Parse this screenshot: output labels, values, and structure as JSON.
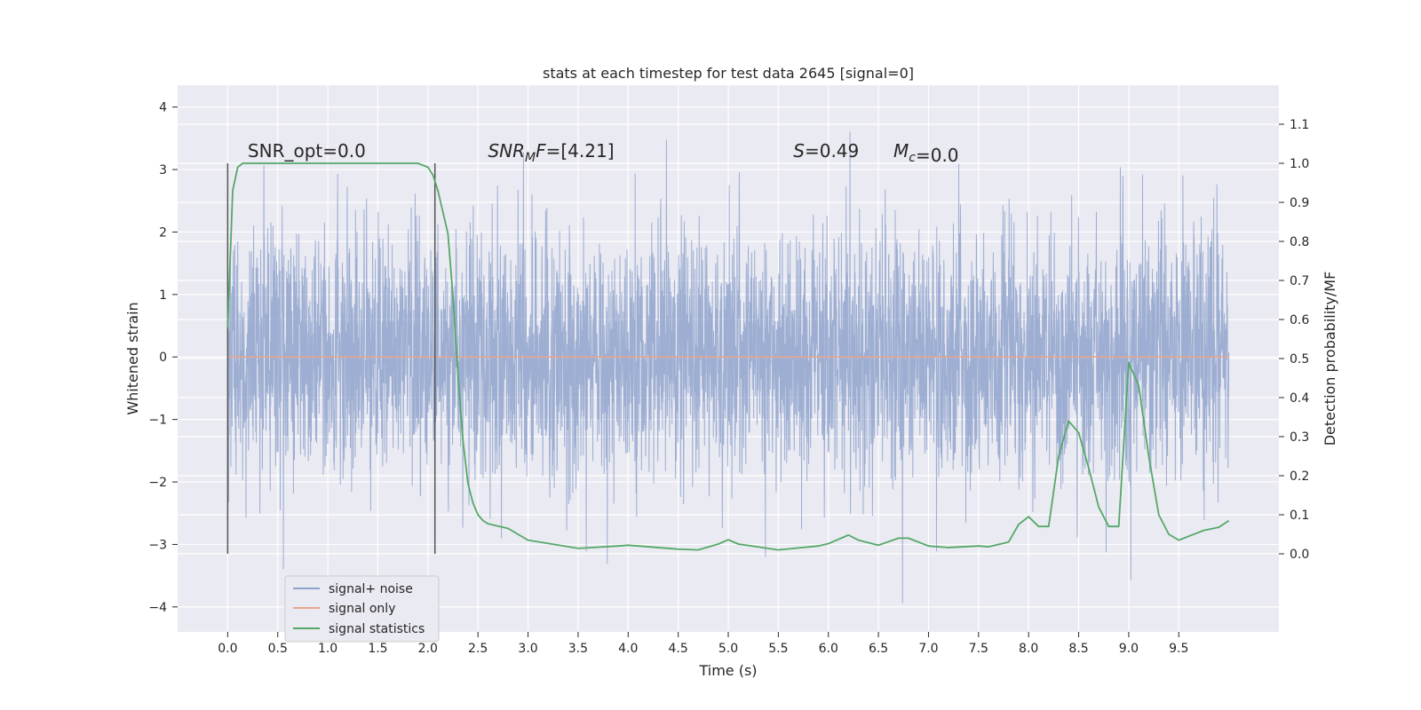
{
  "chart_data": {
    "type": "line",
    "title": "stats at each timestep for test data 2645 [signal=0]",
    "xlabel": "Time (s)",
    "ylabel": "Whitened strain",
    "ylabel_right": "Detection probability/MF",
    "xlim": [
      -0.5,
      10.5
    ],
    "ylim": [
      -4.4,
      4.35
    ],
    "ylim_right": [
      -0.2,
      1.2
    ],
    "x_ticks": [
      0.0,
      0.5,
      1.0,
      1.5,
      2.0,
      2.5,
      3.0,
      3.5,
      4.0,
      4.5,
      5.0,
      5.5,
      6.0,
      6.5,
      7.0,
      7.5,
      8.0,
      8.5,
      9.0,
      9.5
    ],
    "x_tick_labels": [
      "0.0",
      "0.5",
      "1.0",
      "1.5",
      "2.0",
      "2.5",
      "3.0",
      "3.5",
      "4.0",
      "4.5",
      "5.0",
      "5.5",
      "6.0",
      "6.5",
      "7.0",
      "7.5",
      "8.0",
      "8.5",
      "9.0",
      "9.5"
    ],
    "y_ticks": [
      -4,
      -3,
      -2,
      -1,
      0,
      1,
      2,
      3,
      4
    ],
    "y_tick_labels": [
      "−4",
      "−3",
      "−2",
      "−1",
      "0",
      "1",
      "2",
      "3",
      "4"
    ],
    "y_right_ticks": [
      0.0,
      0.1,
      0.2,
      0.3,
      0.4,
      0.5,
      0.6,
      0.7,
      0.8,
      0.9,
      1.0,
      1.1
    ],
    "y_right_tick_labels": [
      "0.0",
      "0.1",
      "0.2",
      "0.3",
      "0.4",
      "0.5",
      "0.6",
      "0.7",
      "0.8",
      "0.9",
      "1.0",
      "1.1"
    ],
    "grid": true,
    "legend_position": "lower-left",
    "annotations": [
      {
        "text": "SNR_opt=0.0",
        "x": 0.2,
        "y": 3.2
      },
      {
        "text": "SNR_MF=[4.21]",
        "x": 2.6,
        "y": 3.2
      },
      {
        "text": "S=0.49",
        "x": 5.65,
        "y": 3.2
      },
      {
        "text": "M_c=0.0",
        "x": 6.65,
        "y": 3.2
      }
    ],
    "vertical_lines": [
      {
        "x": 0.0,
        "ymin": -3.15,
        "ymax": 3.1
      },
      {
        "x": 2.07,
        "ymin": -3.15,
        "ymax": 3.1
      }
    ],
    "series": [
      {
        "name": "signal+ noise",
        "color": "#8fa3cc",
        "axis": "left",
        "kind": "noise",
        "x_range": [
          0.0,
          10.0
        ],
        "sigma": 1.0,
        "seed": 2645
      },
      {
        "name": "signal only",
        "color": "#e8a58c",
        "axis": "left",
        "x": [
          0.0,
          10.0
        ],
        "values": [
          0.0,
          0.0
        ]
      },
      {
        "name": "signal statistics",
        "color": "#55a868",
        "axis": "right",
        "x": [
          0.0,
          0.05,
          0.1,
          0.15,
          0.2,
          0.3,
          0.5,
          1.0,
          1.5,
          1.9,
          2.0,
          2.05,
          2.1,
          2.2,
          2.25,
          2.3,
          2.35,
          2.4,
          2.45,
          2.5,
          2.55,
          2.6,
          2.8,
          3.0,
          3.5,
          3.9,
          4.0,
          4.5,
          4.7,
          4.9,
          5.0,
          5.1,
          5.5,
          5.9,
          6.0,
          6.2,
          6.3,
          6.5,
          6.7,
          6.8,
          7.0,
          7.2,
          7.5,
          7.6,
          7.8,
          7.9,
          8.0,
          8.1,
          8.2,
          8.3,
          8.4,
          8.5,
          8.6,
          8.7,
          8.8,
          8.9,
          9.0,
          9.1,
          9.2,
          9.3,
          9.4,
          9.5,
          9.6,
          9.75,
          9.9,
          10.0
        ],
        "values": [
          0.58,
          0.93,
          0.99,
          1.0,
          1.0,
          1.0,
          1.0,
          1.0,
          1.0,
          1.0,
          0.99,
          0.97,
          0.93,
          0.82,
          0.66,
          0.46,
          0.29,
          0.18,
          0.13,
          0.1,
          0.085,
          0.077,
          0.065,
          0.035,
          0.014,
          0.02,
          0.022,
          0.012,
          0.01,
          0.025,
          0.036,
          0.025,
          0.01,
          0.02,
          0.026,
          0.048,
          0.035,
          0.022,
          0.04,
          0.04,
          0.02,
          0.016,
          0.02,
          0.018,
          0.03,
          0.075,
          0.095,
          0.07,
          0.07,
          0.25,
          0.34,
          0.31,
          0.22,
          0.12,
          0.07,
          0.07,
          0.49,
          0.43,
          0.25,
          0.1,
          0.05,
          0.035,
          0.045,
          0.06,
          0.068,
          0.085
        ]
      }
    ]
  }
}
